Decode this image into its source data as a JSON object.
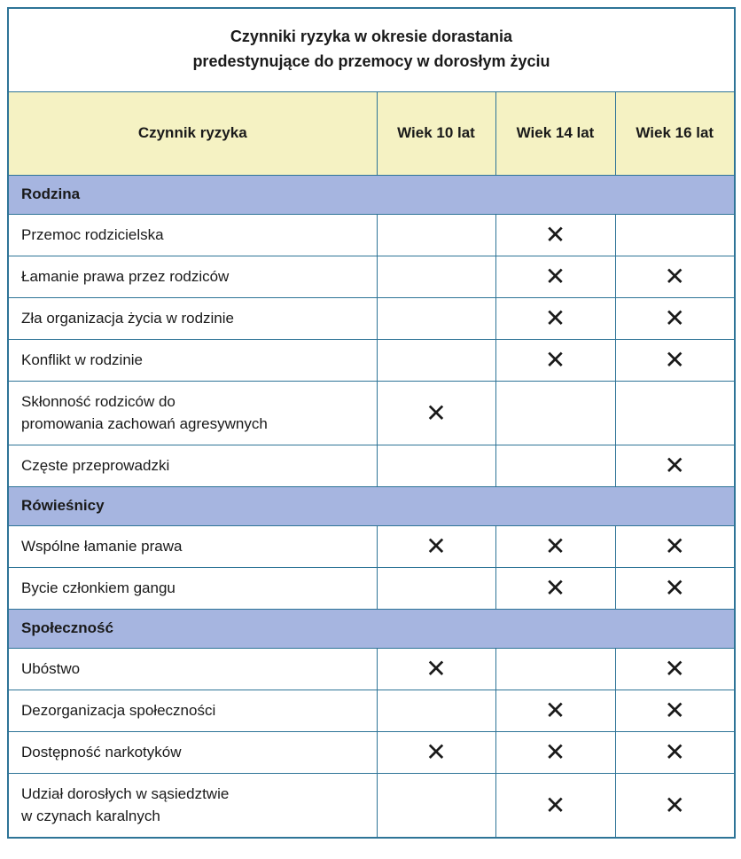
{
  "title": {
    "line1": "Czynniki ryzyka w okresie dorastania",
    "line2": "predestynujące do przemocy w dorosłym życiu"
  },
  "columns": [
    "Czynnik ryzyka",
    "Wiek 10 lat",
    "Wiek 14 lat",
    "Wiek 16 lat"
  ],
  "mark_glyph": "✕",
  "colors": {
    "border": "#2e7497",
    "header_bg": "#f5f2c3",
    "section_bg": "#a6b5e0",
    "text": "#1a1a1a"
  },
  "sections": [
    {
      "label": "Rodzina",
      "rows": [
        {
          "factor": "Przemoc rodzicielska",
          "marks": [
            false,
            true,
            false
          ]
        },
        {
          "factor": "Łamanie prawa przez rodziców",
          "marks": [
            false,
            true,
            true
          ]
        },
        {
          "factor": "Zła organizacja życia w rodzinie",
          "marks": [
            false,
            true,
            true
          ]
        },
        {
          "factor": "Konflikt w rodzinie",
          "marks": [
            false,
            true,
            true
          ]
        },
        {
          "factor": "Skłonność rodziców do\npromowania zachowań agresywnych",
          "marks": [
            true,
            false,
            false
          ]
        },
        {
          "factor": "Częste przeprowadzki",
          "marks": [
            false,
            false,
            true
          ]
        }
      ]
    },
    {
      "label": "Rówieśnicy",
      "rows": [
        {
          "factor": "Wspólne łamanie prawa",
          "marks": [
            true,
            true,
            true
          ]
        },
        {
          "factor": "Bycie członkiem gangu",
          "marks": [
            false,
            true,
            true
          ]
        }
      ]
    },
    {
      "label": "Społeczność",
      "rows": [
        {
          "factor": "Ubóstwo",
          "marks": [
            true,
            false,
            true
          ]
        },
        {
          "factor": "Dezorganizacja społeczności",
          "marks": [
            false,
            true,
            true
          ]
        },
        {
          "factor": "Dostępność narkotyków",
          "marks": [
            true,
            true,
            true
          ]
        },
        {
          "factor": "Udział dorosłych w sąsiedztwie\nw czynach karalnych",
          "marks": [
            false,
            true,
            true
          ]
        }
      ]
    }
  ]
}
